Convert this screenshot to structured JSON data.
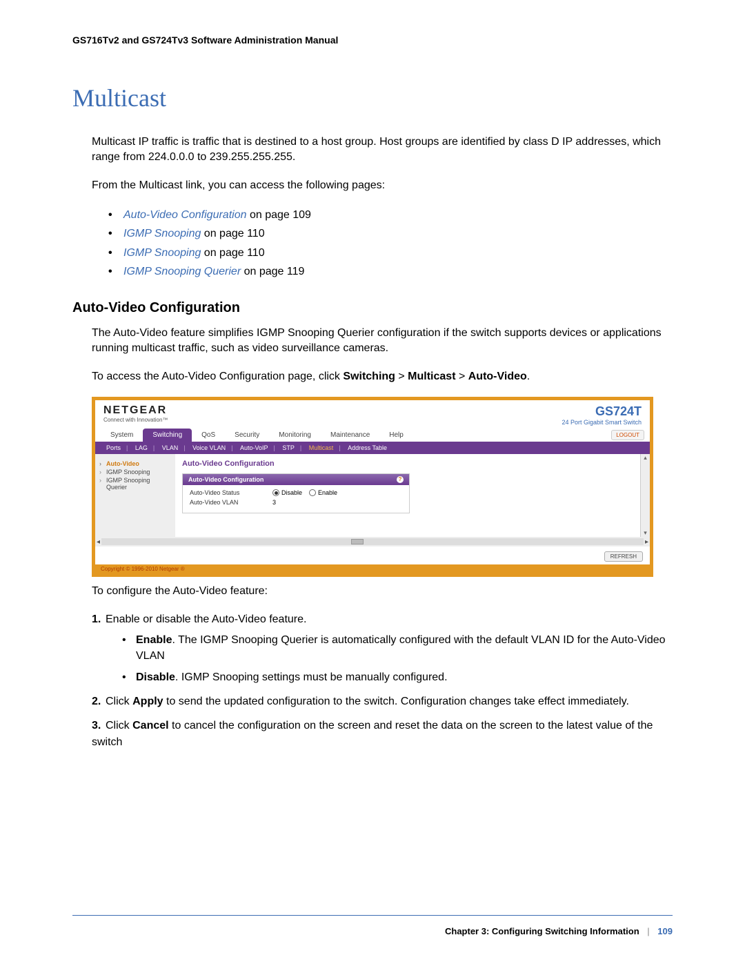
{
  "page": {
    "doc_header": "GS716Tv2 and GS724Tv3 Software Administration Manual",
    "main_heading": "Multicast",
    "para1": "Multicast IP traffic is traffic that is destined to a host group. Host groups are identified by class D IP addresses, which range from 224.0.0.0 to 239.255.255.255.",
    "para2": "From the Multicast link, you can access the following pages:",
    "links": [
      {
        "link": "Auto-Video Configuration",
        "suffix": " on page 109"
      },
      {
        "link": "IGMP Snooping",
        "suffix": " on page 110"
      },
      {
        "link": "IGMP Snooping",
        "suffix": " on page 110"
      },
      {
        "link": "IGMP Snooping Querier",
        "suffix": " on page 119"
      }
    ],
    "sub_heading": "Auto-Video Configuration",
    "para3": "The Auto-Video feature simplifies IGMP Snooping Querier configuration if the switch supports devices or applications running multicast traffic, such as video surveillance cameras.",
    "para4_pre": "To access the Auto-Video Configuration page, click ",
    "nav_switching": "Switching",
    "nav_sep": " > ",
    "nav_multicast": "Multicast",
    "nav_autovideo": "Auto-Video",
    "para4_post": ".",
    "para5": "To configure the Auto-Video feature:",
    "step1": "Enable or disable the Auto-Video feature.",
    "step1a_label": "Enable",
    "step1a_text": ". The IGMP Snooping Querier is automatically configured with the default VLAN ID for the Auto-Video VLAN",
    "step1b_label": "Disable",
    "step1b_text": ". IGMP Snooping settings must be manually configured.",
    "step2_pre": "Click ",
    "step2_bold": "Apply",
    "step2_post": " to send the updated configuration to the switch. Configuration changes take effect immediately.",
    "step3_pre": "Click ",
    "step3_bold": "Cancel",
    "step3_post": " to cancel the configuration on the screen and reset the data on the screen to the latest value of the switch"
  },
  "screenshot": {
    "brand": "NETGEAR",
    "brand_tag": "Connect with Innovation™",
    "model": "GS724T",
    "model_sub": "24 Port Gigabit Smart Switch",
    "tabs": [
      "System",
      "Switching",
      "QoS",
      "Security",
      "Monitoring",
      "Maintenance",
      "Help"
    ],
    "active_tab": "Switching",
    "logout": "LOGOUT",
    "subnav": [
      "Ports",
      "LAG",
      "VLAN",
      "Voice VLAN",
      "Auto-VoIP",
      "STP",
      "Multicast",
      "Address Table"
    ],
    "subnav_active": "Multicast",
    "sidebar": [
      {
        "label": "Auto-Video",
        "active": true
      },
      {
        "label": "IGMP Snooping",
        "active": false
      },
      {
        "label": "IGMP Snooping Querier",
        "active": false
      }
    ],
    "main_title": "Auto-Video Configuration",
    "panel_head": "Auto-Video Configuration",
    "row1_label": "Auto-Video Status",
    "row1_opt1": "Disable",
    "row1_opt2": "Enable",
    "row2_label": "Auto-Video VLAN",
    "row2_value": "3",
    "refresh": "REFRESH",
    "copyright": "Copyright © 1996-2010 Netgear ®"
  },
  "footer": {
    "chapter": "Chapter 3:  Configuring Switching Information",
    "sep": "|",
    "page_number": "109"
  }
}
